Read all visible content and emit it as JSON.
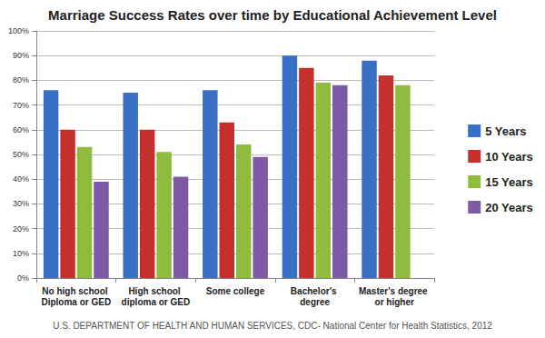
{
  "chart_data": {
    "type": "bar",
    "title": "Marriage Success Rates over time by Educational Achievement Level",
    "annotation": "U.S. DEPARTMENT OF HEALTH AND HUMAN SERVICES, CDC- National Center for Health Statistics, 2012",
    "categories": [
      "No high school Diploma or GED",
      "High school diploma or GED",
      "Some college",
      "Bachelor's degree",
      "Master's degree or higher"
    ],
    "series": [
      {
        "name": "5 Years",
        "color": "#3a6fc6",
        "values": [
          76,
          75,
          76,
          90,
          88
        ]
      },
      {
        "name": "10 Years",
        "color": "#c5302c",
        "values": [
          60,
          60,
          63,
          85,
          82
        ]
      },
      {
        "name": "15 Years",
        "color": "#8fbc3c",
        "values": [
          53,
          51,
          54,
          79,
          78
        ]
      },
      {
        "name": "20 Years",
        "color": "#7d59a6",
        "values": [
          39,
          41,
          49,
          78,
          null
        ]
      }
    ],
    "ylim": [
      0,
      100
    ],
    "yticks": [
      {
        "value": 0,
        "label": "0%"
      },
      {
        "value": 10,
        "label": "10%"
      },
      {
        "value": 20,
        "label": "20%"
      },
      {
        "value": 30,
        "label": "30%"
      },
      {
        "value": 40,
        "label": "40%"
      },
      {
        "value": 50,
        "label": "50%"
      },
      {
        "value": 60,
        "label": "60%"
      },
      {
        "value": 70,
        "label": "70%"
      },
      {
        "value": 80,
        "label": "80%"
      },
      {
        "value": 90,
        "label": "90%"
      },
      {
        "value": 100,
        "label": "100%"
      }
    ],
    "grid": true,
    "legend": "right"
  }
}
